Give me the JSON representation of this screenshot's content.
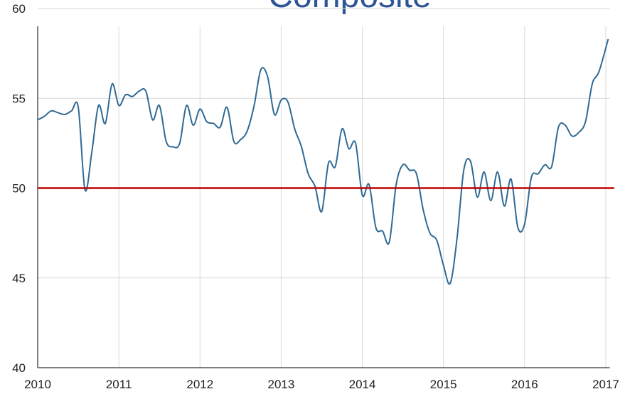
{
  "chart_data": {
    "type": "line",
    "title": "Composite",
    "x": [
      2010,
      2010.083,
      2010.167,
      2010.25,
      2010.333,
      2010.417,
      2010.5,
      2010.583,
      2010.667,
      2010.75,
      2010.833,
      2010.917,
      2011,
      2011.083,
      2011.167,
      2011.25,
      2011.333,
      2011.417,
      2011.5,
      2011.583,
      2011.667,
      2011.75,
      2011.833,
      2011.917,
      2012,
      2012.083,
      2012.167,
      2012.25,
      2012.333,
      2012.417,
      2012.5,
      2012.583,
      2012.667,
      2012.75,
      2012.833,
      2012.917,
      2013,
      2013.083,
      2013.167,
      2013.25,
      2013.333,
      2013.417,
      2013.5,
      2013.583,
      2013.667,
      2013.75,
      2013.833,
      2013.917,
      2014,
      2014.083,
      2014.167,
      2014.25,
      2014.333,
      2014.417,
      2014.5,
      2014.583,
      2014.667,
      2014.75,
      2014.833,
      2014.917,
      2015,
      2015.083,
      2015.167,
      2015.25,
      2015.333,
      2015.417,
      2015.5,
      2015.583,
      2015.667,
      2015.75,
      2015.833,
      2015.917,
      2016,
      2016.083,
      2016.167,
      2016.25,
      2016.333,
      2016.417,
      2016.5,
      2016.583,
      2016.667,
      2016.75,
      2016.833,
      2016.917,
      2017.03
    ],
    "series": [
      {
        "color": "#2f6a94",
        "values": [
          53.8,
          54.0,
          54.3,
          54.2,
          54.1,
          54.3,
          54.5,
          49.9,
          52.0,
          54.6,
          53.6,
          55.8,
          54.6,
          55.2,
          55.1,
          55.4,
          55.4,
          53.8,
          54.6,
          52.6,
          52.3,
          52.5,
          54.6,
          53.5,
          54.4,
          53.7,
          53.6,
          53.4,
          54.5,
          52.6,
          52.7,
          53.2,
          54.6,
          56.6,
          56.2,
          54.1,
          54.9,
          54.8,
          53.3,
          52.3,
          50.8,
          50.1,
          48.7,
          51.4,
          51.2,
          53.3,
          52.2,
          52.5,
          49.6,
          50.2,
          47.8,
          47.6,
          47.0,
          50.2,
          51.3,
          51.0,
          50.8,
          48.8,
          47.5,
          47.1,
          45.7,
          44.7,
          47.2,
          51.0,
          51.5,
          49.5,
          50.9,
          49.3,
          50.9,
          49.0,
          50.5,
          47.8,
          48.0,
          50.6,
          50.8,
          51.3,
          51.2,
          53.4,
          53.5,
          52.9,
          53.1,
          53.7,
          55.8,
          56.5,
          58.3
        ]
      }
    ],
    "reference_line": {
      "value": 50,
      "color": "#c00000"
    },
    "xlim": [
      2010,
      2017.05
    ],
    "xticks": [
      2010,
      2011,
      2012,
      2013,
      2014,
      2015,
      2016,
      2017
    ],
    "ylim": [
      40,
      60
    ],
    "yticks": [
      40,
      45,
      50,
      55,
      60
    ],
    "grid": true
  }
}
